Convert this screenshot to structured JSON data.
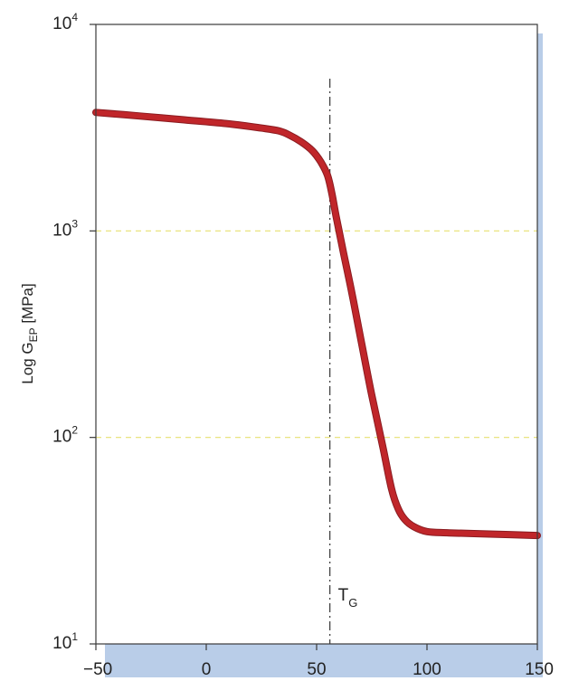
{
  "colors": {
    "curve": "#c0262a",
    "curve_edge": "#8a1b20",
    "frame": "#3a3a3a",
    "grid": "#e8e070",
    "shadow": "#b9cde8",
    "tg_line": "#444444"
  },
  "chart_data": {
    "type": "line",
    "title": "",
    "xlabel": "",
    "ylabel": {
      "prefix": "Log G",
      "sub": "EP",
      "suffix": " [MPa]"
    },
    "xlim": [
      -50,
      150
    ],
    "ylim": [
      10,
      10000
    ],
    "yscale": "log",
    "grid": "horizontal dashed at 100 and 1000",
    "x_ticks": [
      {
        "value": -50,
        "label": "−50"
      },
      {
        "value": 0,
        "label": "0"
      },
      {
        "value": 50,
        "label": "50"
      },
      {
        "value": 100,
        "label": "100"
      },
      {
        "value": 150,
        "label": "150"
      }
    ],
    "y_ticks": [
      {
        "value": 10,
        "base": "10",
        "exp": "1"
      },
      {
        "value": 100,
        "base": "10",
        "exp": "2"
      },
      {
        "value": 1000,
        "base": "10",
        "exp": "3"
      },
      {
        "value": 10000,
        "base": "10",
        "exp": "4"
      }
    ],
    "series": [
      {
        "x": [
          -50,
          -30,
          -10,
          10,
          25,
          33,
          38,
          43,
          48,
          52,
          55,
          57,
          59,
          62,
          66,
          70,
          75,
          80,
          84,
          87,
          90,
          94,
          100,
          110,
          130,
          150
        ],
        "y": [
          3750,
          3600,
          3450,
          3300,
          3150,
          3050,
          2900,
          2700,
          2450,
          2150,
          1850,
          1500,
          1150,
          800,
          500,
          300,
          160,
          90,
          56,
          45,
          40,
          37,
          35,
          34.5,
          34,
          33.5
        ]
      }
    ],
    "annotations": [
      {
        "type": "vertical-dashdot-line",
        "x": 56,
        "label_main": "T",
        "label_sub": "G"
      }
    ]
  }
}
